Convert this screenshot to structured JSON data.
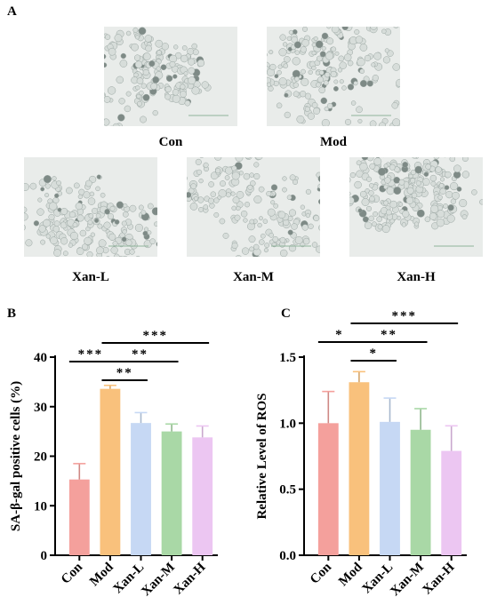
{
  "panel_a": {
    "letter": "A",
    "images": [
      {
        "label": "Con",
        "density": 0.45
      },
      {
        "label": "Mod",
        "density": 0.95
      },
      {
        "label": "Xan-L",
        "density": 0.65
      },
      {
        "label": "Xan-M",
        "density": 0.55
      },
      {
        "label": "Xan-H",
        "density": 0.7
      }
    ]
  },
  "chart_data": [
    {
      "type": "bar",
      "letter": "B",
      "categories": [
        "Con",
        "Mod",
        "Xan-L",
        "Xan-M",
        "Xan-H"
      ],
      "values": [
        15.3,
        33.6,
        26.7,
        25.0,
        23.8
      ],
      "errors": [
        3.2,
        0.7,
        2.1,
        1.5,
        2.3
      ],
      "colors": [
        "#f4a09c",
        "#f9c17c",
        "#c6d8f4",
        "#a9d8a6",
        "#ecc6f2"
      ],
      "xlabel": "",
      "ylabel": "SA-β-gal positive cells (%)",
      "ylim": [
        0,
        40
      ],
      "yticks": [
        0,
        10,
        20,
        30,
        40
      ],
      "grid": false,
      "significance": [
        {
          "from": 0,
          "to": 1,
          "text": "***"
        },
        {
          "from": 1,
          "to": 2,
          "text": "**"
        },
        {
          "from": 1,
          "to": 3,
          "text": "**"
        },
        {
          "from": 1,
          "to": 4,
          "text": "***"
        }
      ]
    },
    {
      "type": "bar",
      "letter": "C",
      "categories": [
        "Con",
        "Mod",
        "Xan-L",
        "Xan-M",
        "Xan-H"
      ],
      "values": [
        1.0,
        1.31,
        1.01,
        0.95,
        0.79
      ],
      "errors": [
        0.24,
        0.08,
        0.18,
        0.16,
        0.19
      ],
      "colors": [
        "#f4a09c",
        "#f9c17c",
        "#c6d8f4",
        "#a9d8a6",
        "#ecc6f2"
      ],
      "xlabel": "",
      "ylabel": "Relative Level of ROS",
      "ylim": [
        0,
        1.5
      ],
      "yticks": [
        "0.0",
        "0.5",
        "1.0",
        "1.5"
      ],
      "grid": false,
      "significance": [
        {
          "from": 0,
          "to": 1,
          "text": "*"
        },
        {
          "from": 1,
          "to": 2,
          "text": "*"
        },
        {
          "from": 1,
          "to": 3,
          "text": "**"
        },
        {
          "from": 1,
          "to": 4,
          "text": "***"
        }
      ]
    }
  ]
}
